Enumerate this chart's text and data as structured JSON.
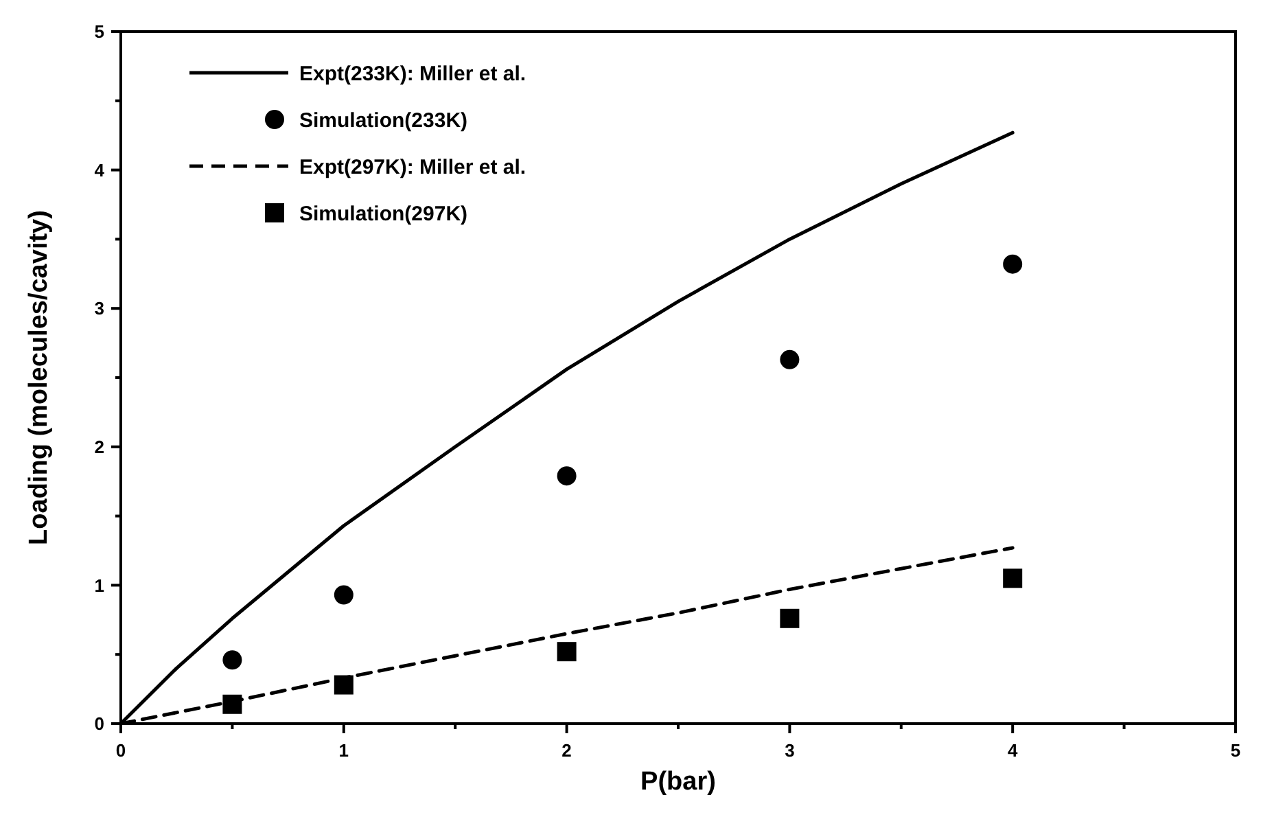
{
  "chart_data": {
    "type": "line",
    "xlabel": "P(bar)",
    "ylabel": "Loading (molecules/cavity)",
    "xlim": [
      0,
      5
    ],
    "ylim": [
      0,
      5
    ],
    "xticks": [
      0,
      {
        "value": 0.5,
        "label": null
      },
      1,
      {
        "value": 1.5,
        "label": null
      },
      2,
      {
        "value": 2.5,
        "label": null
      },
      3,
      {
        "value": 3.5,
        "label": null
      },
      4,
      {
        "value": 4.5,
        "label": null
      },
      5
    ],
    "yticks": [
      0,
      {
        "value": 0.5,
        "label": null
      },
      1,
      {
        "value": 1.5,
        "label": null
      },
      2,
      {
        "value": 2.5,
        "label": null
      },
      3,
      {
        "value": 3.5,
        "label": null
      },
      4,
      {
        "value": 4.5,
        "label": null
      },
      5
    ],
    "grid": false,
    "legend": "top left",
    "series": [
      {
        "name": "Expt(233K): Miller et al.",
        "line_style": "solid",
        "marker": "none",
        "color": "#000000",
        "x": [
          0,
          0.25,
          0.5,
          1,
          1.5,
          2,
          2.5,
          3,
          3.5,
          4
        ],
        "values": [
          0,
          0.4,
          0.76,
          1.43,
          2.0,
          2.56,
          3.05,
          3.5,
          3.9,
          4.27
        ]
      },
      {
        "name": "Simulation(233K)",
        "type": "scatter",
        "marker": "circle",
        "color": "#000000",
        "x": [
          0.5,
          1,
          2,
          3,
          4
        ],
        "values": [
          0.46,
          0.93,
          1.79,
          2.63,
          3.32
        ]
      },
      {
        "name": "Expt(297K): Miller et al.",
        "line_style": "dashed",
        "marker": "none",
        "color": "#000000",
        "x": [
          0,
          0.5,
          1,
          1.5,
          2,
          2.5,
          3,
          3.5,
          4
        ],
        "values": [
          0,
          0.16,
          0.33,
          0.49,
          0.65,
          0.8,
          0.97,
          1.12,
          1.27
        ]
      },
      {
        "name": "Simulation(297K)",
        "type": "scatter",
        "marker": "square",
        "color": "#000000",
        "x": [
          0.5,
          1,
          2,
          3,
          4
        ],
        "values": [
          0.14,
          0.28,
          0.52,
          0.76,
          1.05
        ]
      }
    ]
  }
}
